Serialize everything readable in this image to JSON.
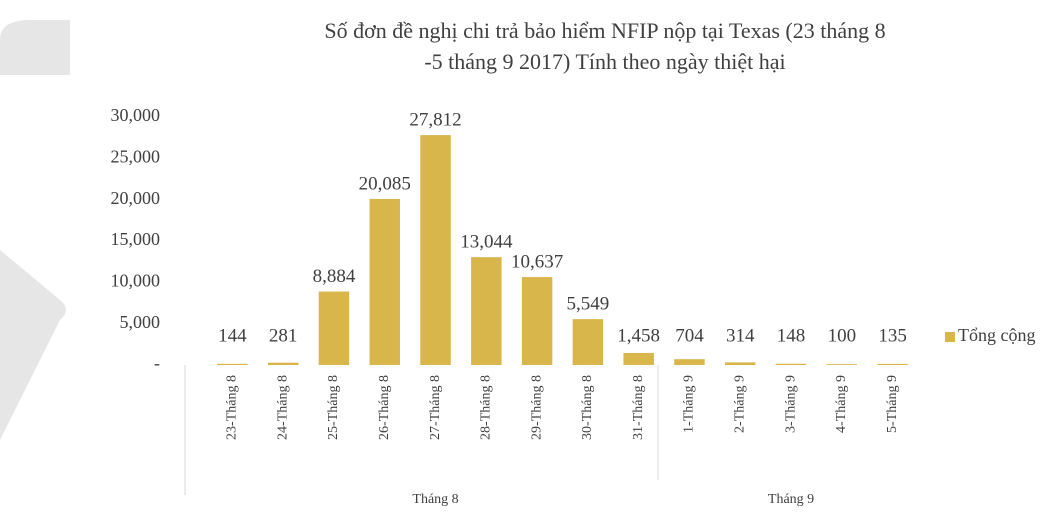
{
  "chart_data": {
    "type": "bar",
    "title": [
      "Số đơn đề nghị chi trả bảo hiểm NFIP nộp tại Texas (23 tháng 8",
      "-5 tháng 9 2017) Tính theo ngày thiệt hại"
    ],
    "groups": [
      {
        "label": "Tháng 8",
        "categories": [
          "23-Tháng 8",
          "24-Tháng 8",
          "25-Tháng 8",
          "26-Tháng 8",
          "27-Tháng 8",
          "28-Tháng 8",
          "29-Tháng 8",
          "30-Tháng 8",
          "31-Tháng 8"
        ]
      },
      {
        "label": "Tháng 9",
        "categories": [
          "1-Tháng 9",
          "2-Tháng 9",
          "3-Tháng 9",
          "4-Tháng 9",
          "5-Tháng 9"
        ]
      }
    ],
    "series": [
      {
        "name": "Tổng cộng",
        "color": "#d9b64c",
        "values": [
          144,
          281,
          8884,
          20085,
          27812,
          13044,
          10637,
          5549,
          1458,
          704,
          314,
          148,
          100,
          135
        ],
        "value_labels": [
          "144",
          "281",
          "8,884",
          "20,085",
          "27,812",
          "13,044",
          "10,637",
          "5,549",
          "1,458",
          "704",
          "314",
          "148",
          "100",
          "135"
        ]
      }
    ],
    "ylim": [
      0,
      30000
    ],
    "yticks": [
      {
        "value": 0,
        "label": "-"
      },
      {
        "value": 5000,
        "label": "5,000"
      },
      {
        "value": 10000,
        "label": "10,000"
      },
      {
        "value": 15000,
        "label": "15,000"
      },
      {
        "value": 20000,
        "label": "20,000"
      },
      {
        "value": 25000,
        "label": "25,000"
      },
      {
        "value": 30000,
        "label": "30,000"
      }
    ],
    "legend": "right"
  }
}
